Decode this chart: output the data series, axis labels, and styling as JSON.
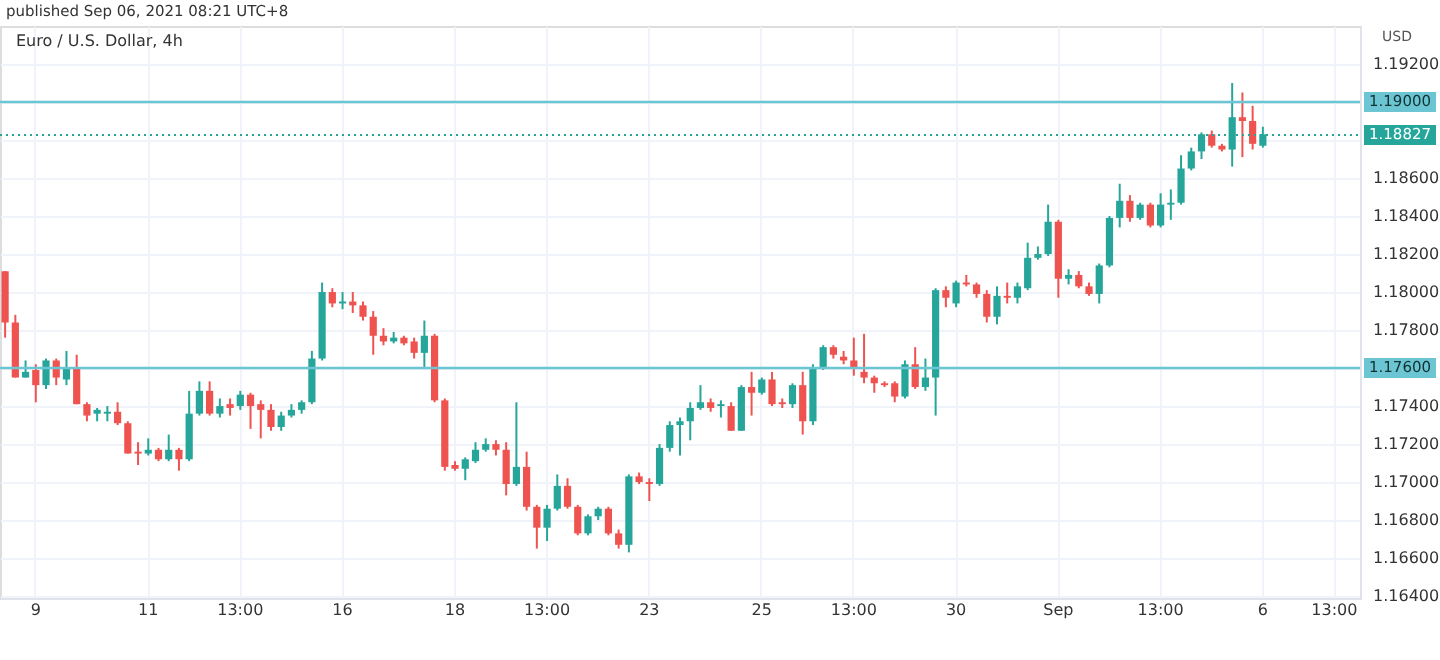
{
  "chart_data": {
    "type": "candlestick",
    "title": "Euro / U.S. Dollar, 4h",
    "ylabel": "USD",
    "annotations": [
      "published Sep 06, 2021 08:21 UTC+8"
    ],
    "categories": [
      null,
      null,
      null,
      "9",
      null,
      null,
      null,
      null,
      null,
      null,
      null,
      null,
      null,
      null,
      "11",
      null,
      null,
      null,
      null,
      null,
      null,
      null,
      null,
      "13:00",
      null,
      null,
      null,
      null,
      null,
      null,
      null,
      null,
      null,
      "16",
      null,
      null,
      null,
      null,
      null,
      null,
      null,
      null,
      null,
      null,
      "18",
      null,
      null,
      null,
      null,
      null,
      null,
      null,
      null,
      "13:00",
      null,
      null,
      null,
      null,
      null,
      null,
      null,
      null,
      null,
      "23",
      null,
      null,
      null,
      null,
      null,
      null,
      null,
      null,
      null,
      null,
      "25",
      null,
      null,
      null,
      null,
      null,
      null,
      null,
      null,
      "13:00",
      null,
      null,
      null,
      null,
      null,
      null,
      null,
      null,
      null,
      "30",
      null,
      null,
      null,
      null,
      null,
      null,
      null,
      null,
      null,
      "Sep",
      null,
      null,
      null,
      null,
      null,
      null,
      null,
      null,
      null,
      "13:00",
      null,
      null,
      null,
      null,
      null,
      null,
      null,
      null,
      null,
      "6",
      null,
      null,
      null,
      null,
      null,
      null,
      "13:00",
      null,
      null
    ],
    "ohlc": [
      [
        1.1811,
        1.1811,
        1.1776,
        1.1784
      ],
      [
        1.1784,
        1.1788,
        1.1755,
        1.1755
      ],
      [
        1.1755,
        1.1764,
        1.1755,
        1.1758
      ],
      [
        1.1759,
        1.1762,
        1.1742,
        1.1751
      ],
      [
        1.1751,
        1.1765,
        1.1749,
        1.1764
      ],
      [
        1.1764,
        1.1765,
        1.1751,
        1.1755
      ],
      [
        1.1754,
        1.1769,
        1.1751,
        1.176
      ],
      [
        1.176,
        1.1767,
        1.1741,
        1.1741
      ],
      [
        1.1741,
        1.1742,
        1.1732,
        1.1735
      ],
      [
        1.1736,
        1.1739,
        1.1732,
        1.1738
      ],
      [
        1.1736,
        1.174,
        1.1732,
        1.1737
      ],
      [
        1.1737,
        1.1742,
        1.173,
        1.1731
      ],
      [
        1.1731,
        1.1732,
        1.1715,
        1.1715
      ],
      [
        1.1716,
        1.1721,
        1.1709,
        1.1715
      ],
      [
        1.1715,
        1.1723,
        1.1714,
        1.1717
      ],
      [
        1.1717,
        1.1718,
        1.1711,
        1.1712
      ],
      [
        1.1712,
        1.1725,
        1.1711,
        1.1717
      ],
      [
        1.1717,
        1.1718,
        1.1706,
        1.1712
      ],
      [
        1.1712,
        1.1748,
        1.1711,
        1.1736
      ],
      [
        1.1736,
        1.1753,
        1.1735,
        1.1748
      ],
      [
        1.1748,
        1.1753,
        1.1735,
        1.1736
      ],
      [
        1.1736,
        1.1744,
        1.1734,
        1.174
      ],
      [
        1.1741,
        1.1744,
        1.1735,
        1.1739
      ],
      [
        1.174,
        1.1748,
        1.1738,
        1.1746
      ],
      [
        1.1746,
        1.1747,
        1.1728,
        1.174
      ],
      [
        1.1741,
        1.1743,
        1.1723,
        1.1738
      ],
      [
        1.1738,
        1.1741,
        1.1727,
        1.1729
      ],
      [
        1.1729,
        1.1737,
        1.1727,
        1.1735
      ],
      [
        1.1735,
        1.1741,
        1.1734,
        1.1738
      ],
      [
        1.1738,
        1.1743,
        1.1736,
        1.1742
      ],
      [
        1.1742,
        1.1769,
        1.1741,
        1.1765
      ],
      [
        1.1765,
        1.1805,
        1.1764,
        1.18
      ],
      [
        1.18,
        1.1802,
        1.1792,
        1.1794
      ],
      [
        1.1794,
        1.18,
        1.1791,
        1.1795
      ],
      [
        1.1795,
        1.18,
        1.1789,
        1.1793
      ],
      [
        1.1793,
        1.1795,
        1.1785,
        1.1787
      ],
      [
        1.1787,
        1.179,
        1.1767,
        1.1777
      ],
      [
        1.1777,
        1.1781,
        1.1772,
        1.1774
      ],
      [
        1.1774,
        1.1779,
        1.1773,
        1.1776
      ],
      [
        1.1776,
        1.1777,
        1.1772,
        1.1773
      ],
      [
        1.1774,
        1.1776,
        1.1765,
        1.1768
      ],
      [
        1.1768,
        1.1785,
        1.176,
        1.1777
      ],
      [
        1.1777,
        1.1778,
        1.1742,
        1.1743
      ],
      [
        1.1743,
        1.1744,
        1.1706,
        1.1708
      ],
      [
        1.1709,
        1.1711,
        1.1706,
        1.1707
      ],
      [
        1.1707,
        1.1713,
        1.1701,
        1.1712
      ],
      [
        1.1711,
        1.1721,
        1.171,
        1.1717
      ],
      [
        1.1717,
        1.1723,
        1.1716,
        1.172
      ],
      [
        1.172,
        1.1722,
        1.1714,
        1.1717
      ],
      [
        1.1717,
        1.1721,
        1.1693,
        1.1699
      ],
      [
        1.1699,
        1.1742,
        1.1698,
        1.1708
      ],
      [
        1.1708,
        1.1716,
        1.1685,
        1.1687
      ],
      [
        1.1687,
        1.1688,
        1.1665,
        1.1676
      ],
      [
        1.1676,
        1.1688,
        1.1669,
        1.1686
      ],
      [
        1.1686,
        1.1704,
        1.1685,
        1.1698
      ],
      [
        1.1698,
        1.1702,
        1.1686,
        1.1687
      ],
      [
        1.1687,
        1.1688,
        1.1672,
        1.1673
      ],
      [
        1.1673,
        1.1683,
        1.1672,
        1.1682
      ],
      [
        1.1682,
        1.1687,
        1.168,
        1.1686
      ],
      [
        1.1686,
        1.1687,
        1.1672,
        1.1673
      ],
      [
        1.1673,
        1.1675,
        1.1665,
        1.1667
      ],
      [
        1.1667,
        1.1704,
        1.1663,
        1.1703
      ],
      [
        1.1703,
        1.1705,
        1.1699,
        1.17
      ],
      [
        1.17,
        1.1702,
        1.169,
        1.1699
      ],
      [
        1.1699,
        1.172,
        1.1698,
        1.1718
      ],
      [
        1.1718,
        1.1732,
        1.1716,
        1.173
      ],
      [
        1.173,
        1.1734,
        1.1714,
        1.1732
      ],
      [
        1.1732,
        1.1742,
        1.1722,
        1.1739
      ],
      [
        1.1739,
        1.1751,
        1.1738,
        1.1742
      ],
      [
        1.1742,
        1.1744,
        1.1737,
        1.1739
      ],
      [
        1.174,
        1.1743,
        1.1734,
        1.1741
      ],
      [
        1.174,
        1.1742,
        1.1727,
        1.1727
      ],
      [
        1.1727,
        1.1751,
        1.1727,
        1.175
      ],
      [
        1.175,
        1.1758,
        1.1735,
        1.1747
      ],
      [
        1.1747,
        1.1755,
        1.1746,
        1.1754
      ],
      [
        1.1754,
        1.1758,
        1.174,
        1.1741
      ],
      [
        1.1742,
        1.1744,
        1.1739,
        1.1741
      ],
      [
        1.1741,
        1.1752,
        1.1739,
        1.1751
      ],
      [
        1.1751,
        1.1758,
        1.1725,
        1.1732
      ],
      [
        1.1732,
        1.1762,
        1.173,
        1.176
      ],
      [
        1.176,
        1.1772,
        1.1759,
        1.1771
      ],
      [
        1.1771,
        1.1772,
        1.1765,
        1.1767
      ],
      [
        1.1766,
        1.1769,
        1.1762,
        1.1764
      ],
      [
        1.1764,
        1.1776,
        1.1756,
        1.176
      ],
      [
        1.1758,
        1.1778,
        1.1752,
        1.1755
      ],
      [
        1.1755,
        1.1756,
        1.1747,
        1.1752
      ],
      [
        1.1752,
        1.1753,
        1.175,
        1.1751
      ],
      [
        1.1752,
        1.1753,
        1.1742,
        1.1745
      ],
      [
        1.1745,
        1.1764,
        1.1744,
        1.1762
      ],
      [
        1.1762,
        1.1771,
        1.1749,
        1.175
      ],
      [
        1.175,
        1.1765,
        1.1748,
        1.1755
      ],
      [
        1.1755,
        1.1802,
        1.1735,
        1.1801
      ],
      [
        1.1801,
        1.1803,
        1.1792,
        1.1797
      ],
      [
        1.1794,
        1.1806,
        1.1792,
        1.1805
      ],
      [
        1.1805,
        1.1809,
        1.1803,
        1.1804
      ],
      [
        1.1804,
        1.1805,
        1.1797,
        1.1799
      ],
      [
        1.1799,
        1.1801,
        1.1784,
        1.1787
      ],
      [
        1.1787,
        1.1803,
        1.1783,
        1.1798
      ],
      [
        1.1798,
        1.1805,
        1.1794,
        1.1797
      ],
      [
        1.1797,
        1.1805,
        1.1794,
        1.1803
      ],
      [
        1.1802,
        1.1826,
        1.1801,
        1.1818
      ],
      [
        1.1818,
        1.1824,
        1.1817,
        1.182
      ],
      [
        1.182,
        1.1846,
        1.1819,
        1.1837
      ],
      [
        1.1837,
        1.1838,
        1.1797,
        1.1807
      ],
      [
        1.1807,
        1.1812,
        1.1804,
        1.1809
      ],
      [
        1.1809,
        1.1811,
        1.1802,
        1.1803
      ],
      [
        1.1803,
        1.1805,
        1.1798,
        1.1799
      ],
      [
        1.1799,
        1.1815,
        1.1794,
        1.1814
      ],
      [
        1.1814,
        1.184,
        1.1813,
        1.1839
      ],
      [
        1.1839,
        1.1857,
        1.1834,
        1.1848
      ],
      [
        1.1848,
        1.1851,
        1.1837,
        1.1839
      ],
      [
        1.1839,
        1.1847,
        1.1838,
        1.1846
      ],
      [
        1.1846,
        1.1847,
        1.1834,
        1.1835
      ],
      [
        1.1835,
        1.1852,
        1.1834,
        1.1846
      ],
      [
        1.1846,
        1.1854,
        1.1838,
        1.1847
      ],
      [
        1.1847,
        1.1872,
        1.1846,
        1.1865
      ],
      [
        1.1865,
        1.1876,
        1.1864,
        1.1874
      ],
      [
        1.1874,
        1.1884,
        1.187,
        1.1883
      ],
      [
        1.1883,
        1.1885,
        1.1876,
        1.1877
      ],
      [
        1.1877,
        1.1878,
        1.1874,
        1.1875
      ],
      [
        1.1875,
        1.191,
        1.1866,
        1.1892
      ],
      [
        1.1892,
        1.1905,
        1.1871,
        1.189
      ],
      [
        1.189,
        1.1898,
        1.1875,
        1.1878
      ],
      [
        1.1877,
        1.1887,
        1.1876,
        1.1883
      ],
      null,
      null,
      null,
      null,
      null,
      null,
      null,
      null,
      null
    ],
    "colors": [
      "#ef5350",
      "#ef5350",
      "#26a69a",
      "#ef5350",
      "#26a69a",
      "#ef5350",
      "#26a69a",
      "#ef5350",
      "#ef5350",
      "#26a69a",
      "#26a69a",
      "#ef5350",
      "#ef5350",
      "#ef5350",
      "#26a69a",
      "#ef5350",
      "#26a69a",
      "#ef5350",
      "#26a69a",
      "#26a69a",
      "#ef5350",
      "#26a69a",
      "#ef5350",
      "#26a69a",
      "#ef5350",
      "#ef5350",
      "#ef5350",
      "#26a69a",
      "#26a69a",
      "#26a69a",
      "#26a69a",
      "#26a69a",
      "#ef5350",
      "#26a69a",
      "#ef5350",
      "#ef5350",
      "#ef5350",
      "#ef5350",
      "#26a69a",
      "#ef5350",
      "#ef5350",
      "#26a69a",
      "#ef5350",
      "#ef5350",
      "#ef5350",
      "#26a69a",
      "#26a69a",
      "#26a69a",
      "#ef5350",
      "#ef5350",
      "#26a69a",
      "#ef5350",
      "#ef5350",
      "#26a69a",
      "#26a69a",
      "#ef5350",
      "#ef5350",
      "#26a69a",
      "#26a69a",
      "#ef5350",
      "#ef5350",
      "#26a69a",
      "#ef5350",
      "#ef5350",
      "#26a69a",
      "#26a69a",
      "#26a69a",
      "#26a69a",
      "#26a69a",
      "#ef5350",
      "#26a69a",
      "#ef5350",
      "#26a69a",
      "#ef5350",
      "#26a69a",
      "#ef5350",
      "#ef5350",
      "#26a69a",
      "#ef5350",
      "#26a69a",
      "#26a69a",
      "#ef5350",
      "#ef5350",
      "#ef5350",
      "#ef5350",
      "#ef5350",
      "#ef5350",
      "#ef5350",
      "#26a69a",
      "#ef5350",
      "#26a69a",
      "#26a69a",
      "#ef5350",
      "#26a69a",
      "#ef5350",
      "#ef5350",
      "#ef5350",
      "#26a69a",
      "#ef5350",
      "#26a69a",
      "#26a69a",
      "#26a69a",
      "#26a69a",
      "#ef5350",
      "#26a69a",
      "#ef5350",
      "#ef5350",
      "#26a69a",
      "#26a69a",
      "#26a69a",
      "#ef5350",
      "#26a69a",
      "#ef5350",
      "#26a69a",
      "#26a69a",
      "#26a69a",
      "#26a69a",
      "#26a69a",
      "#ef5350",
      "#ef5350",
      "#26a69a",
      "#ef5350",
      "#ef5350",
      "#26a69a",
      null,
      null,
      null,
      null,
      null,
      null,
      null,
      null,
      null
    ],
    "ylim": [
      1.1639,
      1.194
    ],
    "yticks": [
      {
        "value": 1.164,
        "label": "1.16400"
      },
      {
        "value": 1.166,
        "label": "1.16600"
      },
      {
        "value": 1.168,
        "label": "1.16800"
      },
      {
        "value": 1.17,
        "label": "1.17000"
      },
      {
        "value": 1.172,
        "label": "1.17200"
      },
      {
        "value": 1.174,
        "label": "1.17400"
      },
      {
        "value": 1.176,
        "label": null
      },
      {
        "value": 1.178,
        "label": "1.17800"
      },
      {
        "value": 1.18,
        "label": "1.18000"
      },
      {
        "value": 1.182,
        "label": "1.18200"
      },
      {
        "value": 1.184,
        "label": "1.18400"
      },
      {
        "value": 1.186,
        "label": "1.18600"
      },
      {
        "value": 1.188,
        "label": null
      },
      {
        "value": 1.19,
        "label": null
      },
      {
        "value": 1.192,
        "label": "1.19200"
      }
    ],
    "ref_lines": [
      {
        "axis": "y",
        "value": 1.19,
        "label": "1.19000",
        "color": "#6cc5d3",
        "line_style": "solid"
      },
      {
        "axis": "y",
        "value": 1.176,
        "label": "1.17600",
        "color": "#6cc5d3",
        "line_style": "solid"
      },
      {
        "axis": "y",
        "value": 1.18827,
        "label": "1.18827",
        "color": "#26a69a",
        "line_style": "dotted"
      }
    ],
    "grid": true
  }
}
